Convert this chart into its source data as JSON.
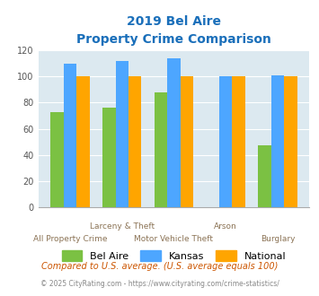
{
  "title_line1": "2019 Bel Aire",
  "title_line2": "Property Crime Comparison",
  "bel_aire": [
    73,
    76,
    88,
    0,
    47
  ],
  "kansas": [
    110,
    112,
    114,
    100,
    101
  ],
  "national": [
    100,
    100,
    100,
    100,
    100
  ],
  "bar_colors": {
    "bel_aire": "#7bc143",
    "kansas": "#4da6ff",
    "national": "#ffa500"
  },
  "ylim": [
    0,
    120
  ],
  "yticks": [
    0,
    20,
    40,
    60,
    80,
    100,
    120
  ],
  "background_color": "#dce9f0",
  "title_color": "#1a6fba",
  "xlabel_color": "#8b7355",
  "footnote1": "Compared to U.S. average. (U.S. average equals 100)",
  "footnote2": "© 2025 CityRating.com - https://www.cityrating.com/crime-statistics/",
  "footnote1_color": "#cc5500",
  "footnote2_color": "#888888"
}
